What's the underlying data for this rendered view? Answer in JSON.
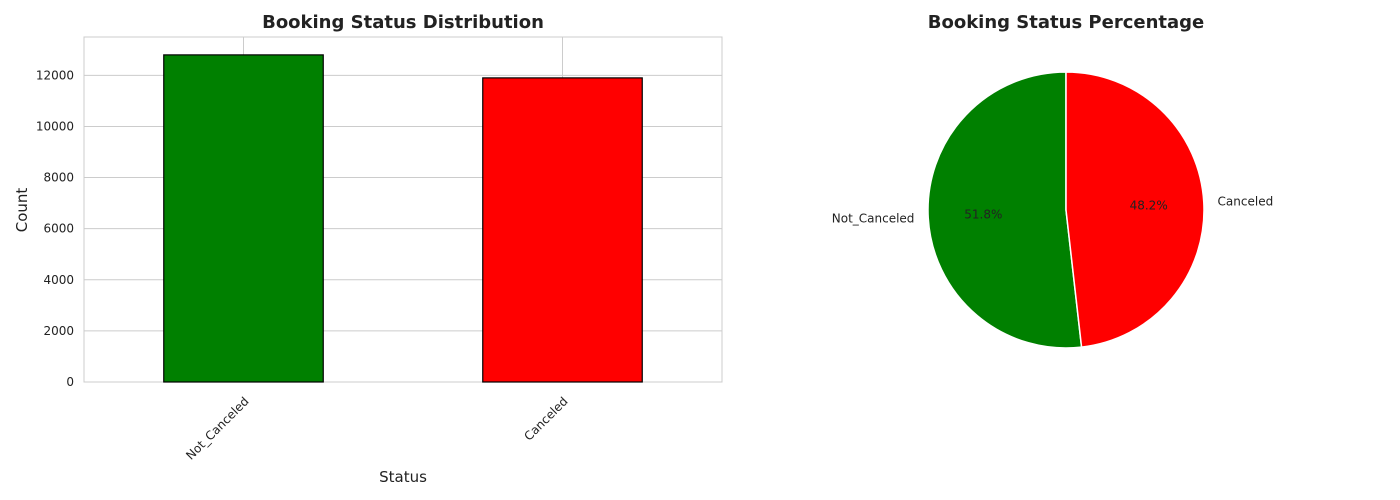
{
  "chart_data": [
    {
      "type": "bar",
      "title": "Booking Status Distribution",
      "xlabel": "Status",
      "ylabel": "Count",
      "categories": [
        "Not_Canceled",
        "Canceled"
      ],
      "values": [
        12800,
        11900
      ],
      "colors": [
        "#008000",
        "#ff0000"
      ],
      "edge_color": "#000000",
      "ylim": [
        0,
        13500
      ],
      "yticks": [
        0,
        2000,
        4000,
        6000,
        8000,
        10000,
        12000
      ],
      "grid": true,
      "xtick_rotation": 45
    },
    {
      "type": "pie",
      "title": "Booking Status Percentage",
      "labels": [
        "Not_Canceled",
        "Canceled"
      ],
      "values": [
        51.8,
        48.2
      ],
      "pct_labels": [
        "51.8%",
        "48.2%"
      ],
      "colors": [
        "#008000",
        "#ff0000"
      ],
      "start_angle": 90
    }
  ]
}
